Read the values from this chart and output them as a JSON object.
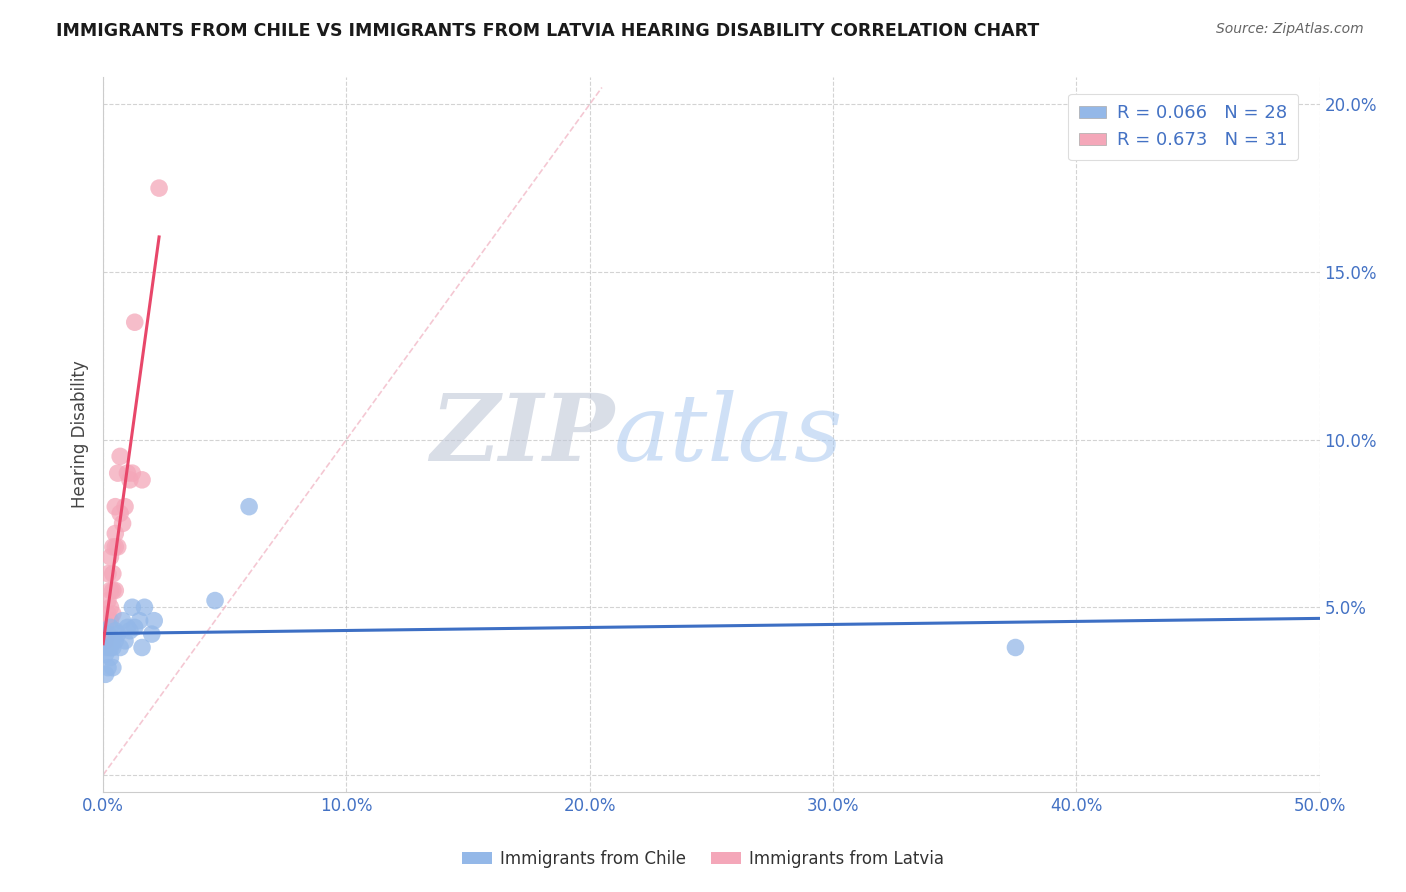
{
  "title": "IMMIGRANTS FROM CHILE VS IMMIGRANTS FROM LATVIA HEARING DISABILITY CORRELATION CHART",
  "source": "Source: ZipAtlas.com",
  "xlabel_chile": "Immigrants from Chile",
  "xlabel_latvia": "Immigrants from Latvia",
  "ylabel": "Hearing Disability",
  "watermark_zip": "ZIP",
  "watermark_atlas": "atlas",
  "chile_R": 0.066,
  "chile_N": 28,
  "latvia_R": 0.673,
  "latvia_N": 31,
  "xlim": [
    0.0,
    0.5
  ],
  "ylim": [
    -0.005,
    0.208
  ],
  "xticks": [
    0.0,
    0.1,
    0.2,
    0.3,
    0.4,
    0.5
  ],
  "xtick_labels": [
    "0.0%",
    "10.0%",
    "20.0%",
    "30.0%",
    "40.0%",
    "50.0%"
  ],
  "yticks": [
    0.0,
    0.05,
    0.1,
    0.15,
    0.2
  ],
  "ytick_labels": [
    "",
    "5.0%",
    "10.0%",
    "15.0%",
    "20.0%"
  ],
  "chile_color": "#94b8e8",
  "latvia_color": "#f4a7b9",
  "chile_line_color": "#3d6fc4",
  "latvia_line_color": "#e8476a",
  "chile_scatter_x": [
    0.001,
    0.001,
    0.002,
    0.002,
    0.002,
    0.003,
    0.003,
    0.003,
    0.004,
    0.004,
    0.005,
    0.005,
    0.006,
    0.007,
    0.008,
    0.009,
    0.01,
    0.011,
    0.012,
    0.013,
    0.015,
    0.016,
    0.017,
    0.02,
    0.021,
    0.046,
    0.06,
    0.375
  ],
  "chile_scatter_y": [
    0.036,
    0.03,
    0.042,
    0.038,
    0.032,
    0.038,
    0.035,
    0.044,
    0.038,
    0.032,
    0.04,
    0.043,
    0.042,
    0.038,
    0.046,
    0.04,
    0.044,
    0.043,
    0.05,
    0.044,
    0.046,
    0.038,
    0.05,
    0.042,
    0.046,
    0.052,
    0.08,
    0.038
  ],
  "latvia_scatter_x": [
    0.001,
    0.001,
    0.001,
    0.002,
    0.002,
    0.002,
    0.002,
    0.003,
    0.003,
    0.003,
    0.003,
    0.004,
    0.004,
    0.004,
    0.004,
    0.005,
    0.005,
    0.005,
    0.005,
    0.006,
    0.006,
    0.007,
    0.007,
    0.008,
    0.009,
    0.01,
    0.011,
    0.012,
    0.013,
    0.016,
    0.023
  ],
  "latvia_scatter_y": [
    0.04,
    0.038,
    0.045,
    0.042,
    0.048,
    0.052,
    0.06,
    0.046,
    0.05,
    0.055,
    0.065,
    0.048,
    0.055,
    0.068,
    0.06,
    0.055,
    0.068,
    0.072,
    0.08,
    0.068,
    0.09,
    0.078,
    0.095,
    0.075,
    0.08,
    0.09,
    0.088,
    0.09,
    0.135,
    0.088,
    0.175
  ],
  "background_color": "#ffffff",
  "grid_color": "#c8c8c8"
}
